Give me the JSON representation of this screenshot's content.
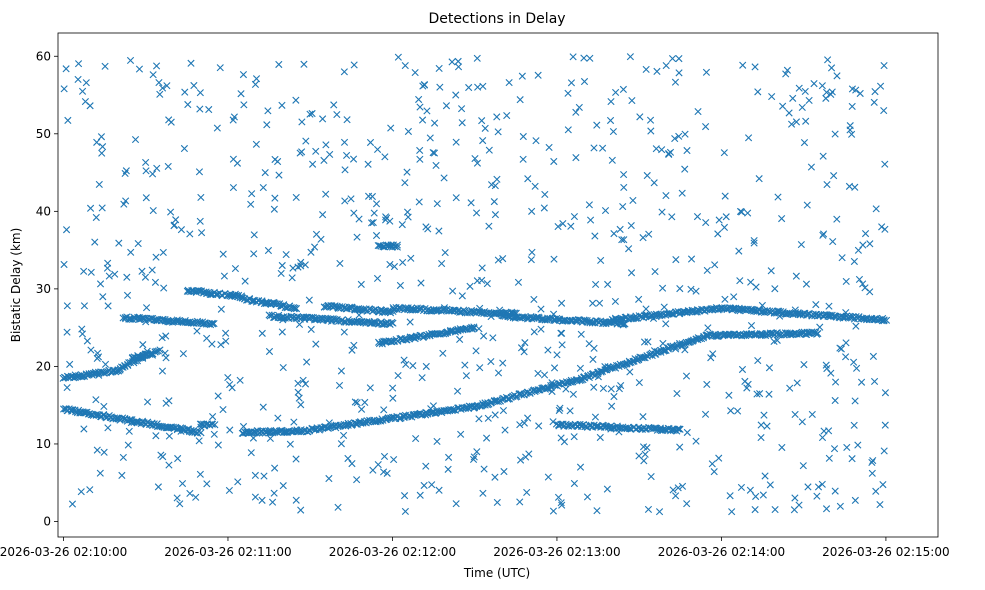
{
  "chart_data": {
    "type": "scatter",
    "title": "Detections in Delay",
    "xlabel": "Time (UTC)",
    "ylabel": "Bistatic Delay (km)",
    "x_start": "2026-03-26 02:10:00",
    "x_end": "2026-03-26 02:15:00",
    "x_ticks": [
      "2026-03-26 02:10:00",
      "2026-03-26 02:11:00",
      "2026-03-26 02:12:00",
      "2026-03-26 02:13:00",
      "2026-03-26 02:14:00",
      "2026-03-26 02:15:00"
    ],
    "y_ticks": [
      0,
      10,
      20,
      30,
      40,
      50,
      60
    ],
    "xlim": [
      "2026-03-26 02:09:58",
      "2026-03-26 02:15:19"
    ],
    "ylim": [
      -2,
      63
    ],
    "marker": "x",
    "color": "#1f77b4",
    "grid": false,
    "series": [
      {
        "name": "",
        "tracks": [
          {
            "kind": "linear",
            "x_from": "2026-03-26 02:10:00",
            "x_to": "2026-03-26 02:10:08",
            "y_from": 14.5,
            "y_to": 14.0
          },
          {
            "kind": "linear",
            "x_from": "2026-03-26 02:10:08",
            "x_to": "2026-03-26 02:10:50",
            "y_from": 14.0,
            "y_to": 11.5
          },
          {
            "kind": "linear",
            "x_from": "2026-03-26 02:10:50",
            "x_to": "2026-03-26 02:10:55",
            "y_from": 12.5,
            "y_to": 12.5
          },
          {
            "kind": "linear",
            "x_from": "2026-03-26 02:11:05",
            "x_to": "2026-03-26 02:11:30",
            "y_from": 11.5,
            "y_to": 11.7
          },
          {
            "kind": "linear",
            "x_from": "2026-03-26 02:11:30",
            "x_to": "2026-03-26 02:12:30",
            "y_from": 11.8,
            "y_to": 14.8
          },
          {
            "kind": "linear",
            "x_from": "2026-03-26 02:12:30",
            "x_to": "2026-03-26 02:13:10",
            "y_from": 14.8,
            "y_to": 18.5
          },
          {
            "kind": "linear",
            "x_from": "2026-03-26 02:13:10",
            "x_to": "2026-03-26 02:13:30",
            "y_from": 18.5,
            "y_to": 21.0
          },
          {
            "kind": "linear",
            "x_from": "2026-03-26 02:13:30",
            "x_to": "2026-03-26 02:13:55",
            "y_from": 21.0,
            "y_to": 24.0
          },
          {
            "kind": "linear",
            "x_from": "2026-03-26 02:13:55",
            "x_to": "2026-03-26 02:14:35",
            "y_from": 24.0,
            "y_to": 24.3
          },
          {
            "kind": "linear",
            "x_from": "2026-03-26 02:13:00",
            "x_to": "2026-03-26 02:13:45",
            "y_from": 12.5,
            "y_to": 11.8
          },
          {
            "kind": "linear",
            "x_from": "2026-03-26 02:10:00",
            "x_to": "2026-03-26 02:10:20",
            "y_from": 18.5,
            "y_to": 19.5
          },
          {
            "kind": "linear",
            "x_from": "2026-03-26 02:10:20",
            "x_to": "2026-03-26 02:10:30",
            "y_from": 19.5,
            "y_to": 21.5
          },
          {
            "kind": "linear",
            "x_from": "2026-03-26 02:10:25",
            "x_to": "2026-03-26 02:10:35",
            "y_from": 21.0,
            "y_to": 22.0
          },
          {
            "kind": "linear",
            "x_from": "2026-03-26 02:10:22",
            "x_to": "2026-03-26 02:10:55",
            "y_from": 26.3,
            "y_to": 25.5
          },
          {
            "kind": "linear",
            "x_from": "2026-03-26 02:10:45",
            "x_to": "2026-03-26 02:11:05",
            "y_from": 29.8,
            "y_to": 29.0
          },
          {
            "kind": "linear",
            "x_from": "2026-03-26 02:11:05",
            "x_to": "2026-03-26 02:11:25",
            "y_from": 28.8,
            "y_to": 27.5
          },
          {
            "kind": "linear",
            "x_from": "2026-03-26 02:11:15",
            "x_to": "2026-03-26 02:12:00",
            "y_from": 26.5,
            "y_to": 25.5
          },
          {
            "kind": "linear",
            "x_from": "2026-03-26 02:11:35",
            "x_to": "2026-03-26 02:12:00",
            "y_from": 27.8,
            "y_to": 27.0
          },
          {
            "kind": "linear",
            "x_from": "2026-03-26 02:11:55",
            "x_to": "2026-03-26 02:12:30",
            "y_from": 23.0,
            "y_to": 25.0
          },
          {
            "kind": "linear",
            "x_from": "2026-03-26 02:12:00",
            "x_to": "2026-03-26 02:12:45",
            "y_from": 27.5,
            "y_to": 26.8
          },
          {
            "kind": "linear",
            "x_from": "2026-03-26 02:12:40",
            "x_to": "2026-03-26 02:13:25",
            "y_from": 26.5,
            "y_to": 25.5
          },
          {
            "kind": "linear",
            "x_from": "2026-03-26 02:13:20",
            "x_to": "2026-03-26 02:14:00",
            "y_from": 26.0,
            "y_to": 27.5
          },
          {
            "kind": "linear",
            "x_from": "2026-03-26 02:14:00",
            "x_to": "2026-03-26 02:15:00",
            "y_from": 27.5,
            "y_to": 26.0
          },
          {
            "kind": "linear",
            "x_from": "2026-03-26 02:11:55",
            "x_to": "2026-03-26 02:12:02",
            "y_from": 35.5,
            "y_to": 35.5
          }
        ],
        "noise": {
          "count": 860,
          "y_range": [
            1,
            60
          ]
        }
      }
    ]
  }
}
